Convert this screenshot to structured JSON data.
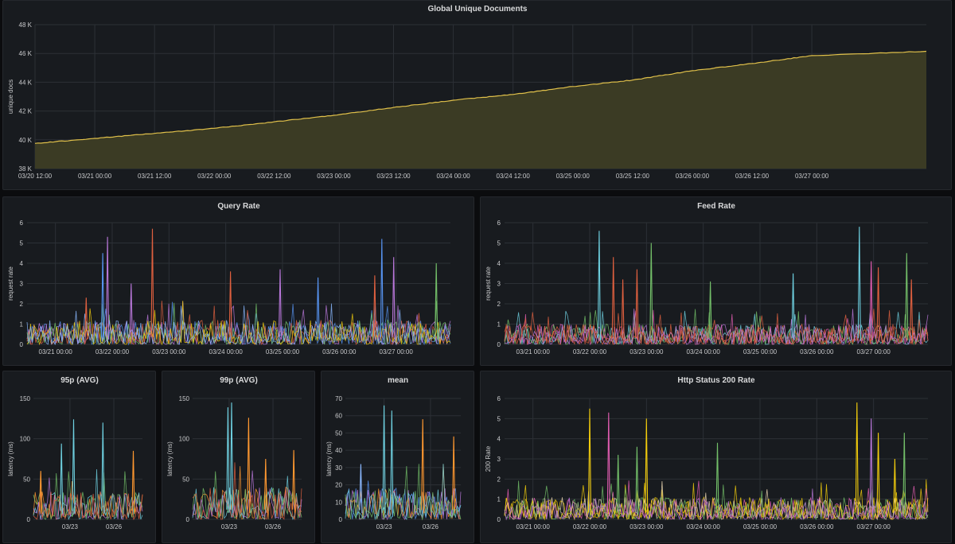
{
  "charts": {
    "global": {
      "title": "Global Unique Documents",
      "ylabel": "unique docs",
      "ytick_labels": [
        "38 K",
        "40 K",
        "42 K",
        "44 K",
        "46 K",
        "48 K"
      ],
      "xtick_labels": [
        "03/20 12:00",
        "03/21 00:00",
        "03/21 12:00",
        "03/22 00:00",
        "03/22 12:00",
        "03/23 00:00",
        "03/23 12:00",
        "03/24 00:00",
        "03/24 12:00",
        "03/25 00:00",
        "03/25 12:00",
        "03/26 00:00",
        "03/26 12:00",
        "03/27 00:00"
      ]
    },
    "query": {
      "title": "Query Rate",
      "ylabel": "request rate",
      "ytick_labels": [
        "0",
        "1",
        "2",
        "3",
        "4",
        "5",
        "6"
      ],
      "xtick_labels": [
        "03/21 00:00",
        "03/22 00:00",
        "03/23 00:00",
        "03/24 00:00",
        "03/25 00:00",
        "03/26 00:00",
        "03/27 00:00"
      ]
    },
    "feed": {
      "title": "Feed Rate",
      "ylabel": "request rate",
      "ytick_labels": [
        "0",
        "1",
        "2",
        "3",
        "4",
        "5",
        "6"
      ],
      "xtick_labels": [
        "03/21 00:00",
        "03/22 00:00",
        "03/23 00:00",
        "03/24 00:00",
        "03/25 00:00",
        "03/26 00:00",
        "03/27 00:00"
      ]
    },
    "p95": {
      "title": "95p (AVG)",
      "ylabel": "latency (ms)",
      "ytick_labels": [
        "0",
        "50",
        "100",
        "150"
      ],
      "xtick_labels": [
        "03/23",
        "03/26"
      ]
    },
    "p99": {
      "title": "99p (AVG)",
      "ylabel": "latency (ms)",
      "ytick_labels": [
        "0",
        "50",
        "100",
        "150"
      ],
      "xtick_labels": [
        "03/23",
        "03/26"
      ]
    },
    "mean": {
      "title": "mean",
      "ylabel": "latency (ms)",
      "ytick_labels": [
        "0",
        "10",
        "20",
        "30",
        "40",
        "50",
        "60",
        "70"
      ],
      "xtick_labels": [
        "03/23",
        "03/26"
      ]
    },
    "http": {
      "title": "Http Status 200 Rate",
      "ylabel": "200 Rate",
      "ytick_labels": [
        "0",
        "1",
        "2",
        "3",
        "4",
        "5",
        "6"
      ],
      "xtick_labels": [
        "03/21 00:00",
        "03/22 00:00",
        "03/23 00:00",
        "03/24 00:00",
        "03/25 00:00",
        "03/26 00:00",
        "03/27 00:00"
      ]
    }
  },
  "chart_data": [
    {
      "id": "global",
      "type": "area",
      "title": "Global Unique Documents",
      "ylabel": "unique docs",
      "ylim": [
        38000,
        48000
      ],
      "xlim": [
        "2021-03-20T12:00",
        "2021-03-27T23:00"
      ],
      "x": [
        "2021-03-20T12:00",
        "2021-03-21T00:00",
        "2021-03-21T12:00",
        "2021-03-22T00:00",
        "2021-03-22T12:00",
        "2021-03-23T00:00",
        "2021-03-23T12:00",
        "2021-03-24T00:00",
        "2021-03-24T12:00",
        "2021-03-25T00:00",
        "2021-03-25T12:00",
        "2021-03-26T00:00",
        "2021-03-26T12:00",
        "2021-03-27T00:00",
        "2021-03-27T23:00"
      ],
      "y": [
        39750,
        40100,
        40450,
        40800,
        41250,
        41700,
        42250,
        42750,
        43150,
        43700,
        44150,
        44800,
        45300,
        45850,
        46150
      ],
      "color": "#e0c04a",
      "fill": "#3b3b24"
    },
    {
      "id": "query",
      "type": "line",
      "title": "Query Rate",
      "ylabel": "request rate",
      "ylim": [
        0,
        6
      ],
      "xlim": [
        "2021-03-20T12:00",
        "2021-03-27T23:00"
      ],
      "x": [
        "2021-03-21T00:00",
        "2021-03-22T00:00",
        "2021-03-23T00:00",
        "2021-03-24T00:00",
        "2021-03-25T00:00",
        "2021-03-26T00:00",
        "2021-03-27T00:00"
      ],
      "baseline_max": 1.2,
      "spikes": [
        {
          "x": "2021-03-21T20:00",
          "y": 4.5,
          "color": "#5794f2"
        },
        {
          "x": "2021-03-21T22:00",
          "y": 5.3,
          "color": "#b877d9"
        },
        {
          "x": "2021-03-22T17:00",
          "y": 5.7,
          "color": "#e0603f"
        },
        {
          "x": "2021-03-22T08:00",
          "y": 3.0,
          "color": "#b877d9"
        },
        {
          "x": "2021-03-21T13:00",
          "y": 2.3,
          "color": "#e0603f"
        },
        {
          "x": "2021-03-24T02:00",
          "y": 3.6,
          "color": "#e0603f"
        },
        {
          "x": "2021-03-24T23:00",
          "y": 3.7,
          "color": "#b877d9"
        },
        {
          "x": "2021-03-25T15:00",
          "y": 3.3,
          "color": "#5794f2"
        },
        {
          "x": "2021-03-26T15:00",
          "y": 3.4,
          "color": "#e0603f"
        },
        {
          "x": "2021-03-26T18:00",
          "y": 5.2,
          "color": "#5794f2"
        },
        {
          "x": "2021-03-26T23:00",
          "y": 4.3,
          "color": "#b877d9"
        },
        {
          "x": "2021-03-27T17:00",
          "y": 4.0,
          "color": "#73bf69"
        }
      ],
      "colors": [
        "#5794f2",
        "#b877d9",
        "#e0603f",
        "#73bf69",
        "#f2cc0c",
        "#8ab8ff"
      ]
    },
    {
      "id": "feed",
      "type": "line",
      "title": "Feed Rate",
      "ylabel": "request rate",
      "ylim": [
        0,
        6
      ],
      "xlim": [
        "2021-03-20T12:00",
        "2021-03-27T23:00"
      ],
      "x": [
        "2021-03-21T00:00",
        "2021-03-22T00:00",
        "2021-03-23T00:00",
        "2021-03-24T00:00",
        "2021-03-25T00:00",
        "2021-03-26T00:00",
        "2021-03-27T00:00"
      ],
      "baseline_max": 1.0,
      "spikes": [
        {
          "x": "2021-03-22T04:00",
          "y": 5.6,
          "color": "#6ed0e0"
        },
        {
          "x": "2021-03-22T10:00",
          "y": 4.3,
          "color": "#e0603f"
        },
        {
          "x": "2021-03-22T14:00",
          "y": 3.2,
          "color": "#e0603f"
        },
        {
          "x": "2021-03-23T02:00",
          "y": 5.0,
          "color": "#73bf69"
        },
        {
          "x": "2021-03-22T20:00",
          "y": 3.7,
          "color": "#e0603f"
        },
        {
          "x": "2021-03-24T03:00",
          "y": 3.1,
          "color": "#73bf69"
        },
        {
          "x": "2021-03-25T14:00",
          "y": 3.5,
          "color": "#6ed0e0"
        },
        {
          "x": "2021-03-26T18:00",
          "y": 5.8,
          "color": "#6ed0e0"
        },
        {
          "x": "2021-03-26T23:00",
          "y": 4.1,
          "color": "#e05cb0"
        },
        {
          "x": "2021-03-27T02:00",
          "y": 3.8,
          "color": "#e0603f"
        },
        {
          "x": "2021-03-27T14:00",
          "y": 4.5,
          "color": "#73bf69"
        },
        {
          "x": "2021-03-27T16:00",
          "y": 3.2,
          "color": "#e0603f"
        }
      ],
      "colors": [
        "#6ed0e0",
        "#e05cb0",
        "#73bf69",
        "#e0603f",
        "#e0603f",
        "#b877d9"
      ]
    },
    {
      "id": "p95",
      "type": "line",
      "title": "95p (AVG)",
      "ylabel": "latency (ms)",
      "ylim": [
        0,
        150
      ],
      "xlim": [
        "2021-03-20T12:00",
        "2021-03-27T23:00"
      ],
      "x": [
        "2021-03-23T00:00",
        "2021-03-26T00:00"
      ],
      "baseline_max": 35,
      "spikes": [
        {
          "x": "2021-03-21T00:00",
          "y": 60,
          "color": "#ff9830"
        },
        {
          "x": "2021-03-22T10:00",
          "y": 94,
          "color": "#6ed0e0"
        },
        {
          "x": "2021-03-23T06:00",
          "y": 124,
          "color": "#6ed0e0"
        },
        {
          "x": "2021-03-25T06:00",
          "y": 120,
          "color": "#6ed0e0"
        },
        {
          "x": "2021-03-27T08:00",
          "y": 85,
          "color": "#ff9830"
        }
      ],
      "colors": [
        "#ff9830",
        "#6ed0e0",
        "#b877d9",
        "#73bf69",
        "#e0603f"
      ]
    },
    {
      "id": "p99",
      "type": "line",
      "title": "99p (AVG)",
      "ylabel": "latency (ms)",
      "ylim": [
        0,
        150
      ],
      "xlim": [
        "2021-03-20T12:00",
        "2021-03-27T23:00"
      ],
      "x": [
        "2021-03-23T00:00",
        "2021-03-26T00:00"
      ],
      "baseline_max": 40,
      "spikes": [
        {
          "x": "2021-03-22T22:00",
          "y": 139,
          "color": "#6ed0e0"
        },
        {
          "x": "2021-03-23T04:00",
          "y": 145,
          "color": "#6ed0e0"
        },
        {
          "x": "2021-03-24T08:00",
          "y": 126,
          "color": "#ff9830"
        },
        {
          "x": "2021-03-25T12:00",
          "y": 75,
          "color": "#ff9830"
        },
        {
          "x": "2021-03-27T10:00",
          "y": 86,
          "color": "#ff9830"
        }
      ],
      "colors": [
        "#ff9830",
        "#6ed0e0",
        "#b877d9",
        "#73bf69",
        "#e0603f"
      ]
    },
    {
      "id": "mean",
      "type": "line",
      "title": "mean",
      "ylabel": "latency (ms)",
      "ylim": [
        0,
        70
      ],
      "xlim": [
        "2021-03-20T12:00",
        "2021-03-27T23:00"
      ],
      "x": [
        "2021-03-23T00:00",
        "2021-03-26T00:00"
      ],
      "baseline_max": 18,
      "spikes": [
        {
          "x": "2021-03-23T00:00",
          "y": 66,
          "color": "#6ed0e0"
        },
        {
          "x": "2021-03-23T12:00",
          "y": 63,
          "color": "#6ed0e0"
        },
        {
          "x": "2021-03-25T12:00",
          "y": 58,
          "color": "#ff9830"
        },
        {
          "x": "2021-03-27T12:00",
          "y": 48,
          "color": "#ff9830"
        },
        {
          "x": "2021-03-21T12:00",
          "y": 32,
          "color": "#8ab8ff"
        }
      ],
      "colors": [
        "#5794f2",
        "#b877d9",
        "#ff9830",
        "#6ed0e0",
        "#73bf69"
      ]
    },
    {
      "id": "http",
      "type": "line",
      "title": "Http Status 200 Rate",
      "ylabel": "200 Rate",
      "ylim": [
        0,
        6
      ],
      "xlim": [
        "2021-03-20T12:00",
        "2021-03-27T23:00"
      ],
      "x": [
        "2021-03-21T00:00",
        "2021-03-22T00:00",
        "2021-03-23T00:00",
        "2021-03-24T00:00",
        "2021-03-25T00:00",
        "2021-03-26T00:00",
        "2021-03-27T00:00"
      ],
      "baseline_max": 1.1,
      "spikes": [
        {
          "x": "2021-03-22T00:00",
          "y": 5.5,
          "color": "#f2cc0c"
        },
        {
          "x": "2021-03-22T08:00",
          "y": 5.3,
          "color": "#e05cb0"
        },
        {
          "x": "2021-03-22T12:00",
          "y": 3.2,
          "color": "#73bf69"
        },
        {
          "x": "2021-03-23T00:00",
          "y": 5.0,
          "color": "#f2cc0c"
        },
        {
          "x": "2021-03-22T20:00",
          "y": 3.6,
          "color": "#73bf69"
        },
        {
          "x": "2021-03-24T06:00",
          "y": 3.8,
          "color": "#73bf69"
        },
        {
          "x": "2021-03-26T17:00",
          "y": 5.8,
          "color": "#f2cc0c"
        },
        {
          "x": "2021-03-26T23:00",
          "y": 5.0,
          "color": "#b877d9"
        },
        {
          "x": "2021-03-27T02:00",
          "y": 4.3,
          "color": "#f2cc0c"
        },
        {
          "x": "2021-03-27T13:00",
          "y": 4.3,
          "color": "#73bf69"
        },
        {
          "x": "2021-03-27T09:00",
          "y": 3.0,
          "color": "#f2cc0c"
        }
      ],
      "colors": [
        "#f2cc0c",
        "#e8d3b0",
        "#e05cb0",
        "#73bf69",
        "#f2cc0c",
        "#b877d9"
      ]
    }
  ]
}
